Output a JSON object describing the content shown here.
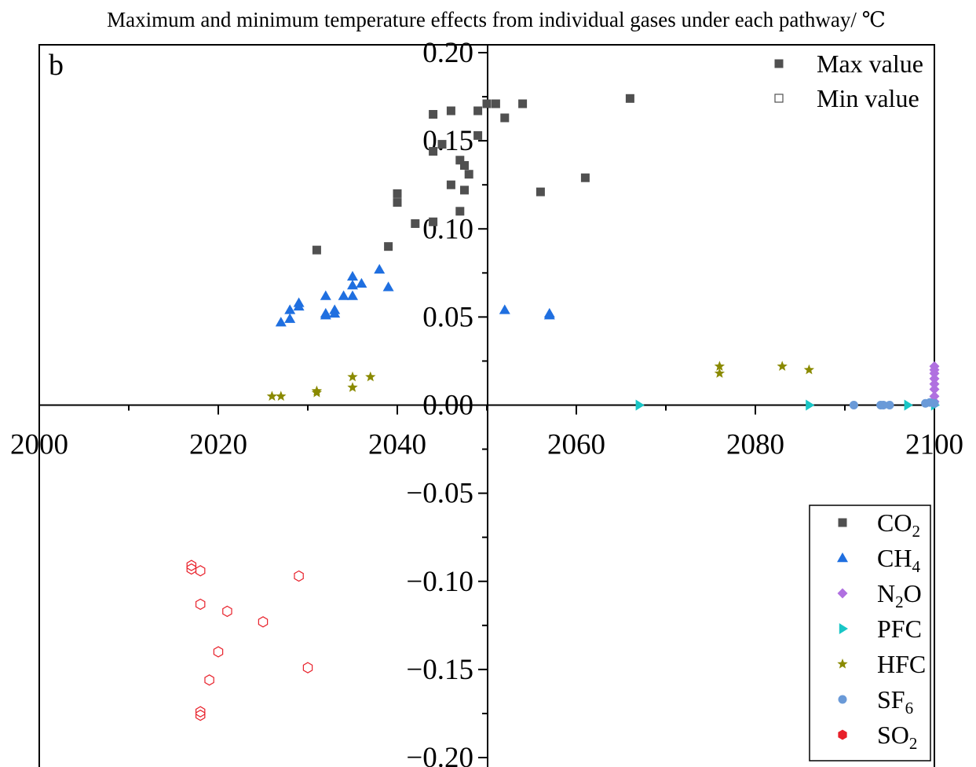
{
  "chart_data": {
    "type": "scatter",
    "title": "Maximum and minimum temperature effects from individual gases under each pathway/ ℃",
    "panel_label": "b",
    "xlim": [
      2000,
      2100
    ],
    "ylim": [
      -0.2,
      0.2
    ],
    "x_ticks": [
      "2000",
      "2020",
      "2040",
      "2060",
      "2080",
      "2100"
    ],
    "y_ticks": [
      "0.20",
      "0.15",
      "0.10",
      "0.05",
      "0.00",
      "−0.05",
      "−0.10",
      "−0.15",
      "−0.20"
    ],
    "legend_top": [
      {
        "label": "Max value",
        "marker": "square-filled"
      },
      {
        "label": "Min value",
        "marker": "square-open"
      }
    ],
    "legend_bottom": [
      {
        "base": "CO",
        "sub": "2",
        "tail": "",
        "color": "#505050",
        "marker": "square"
      },
      {
        "base": "CH",
        "sub": "4",
        "tail": "",
        "color": "#1f6fe0",
        "marker": "triangle"
      },
      {
        "base": "N",
        "sub": "2",
        "tail": "O",
        "color": "#b070e0",
        "marker": "diamond"
      },
      {
        "base": "PFC",
        "sub": "",
        "tail": "",
        "color": "#19c6c6",
        "marker": "triangle-right"
      },
      {
        "base": "HFC",
        "sub": "",
        "tail": "",
        "color": "#8a8a00",
        "marker": "star"
      },
      {
        "base": "SF",
        "sub": "6",
        "tail": "",
        "color": "#6a9ad8",
        "marker": "circle"
      },
      {
        "base": "SO",
        "sub": "2",
        "tail": "",
        "color": "#e8202a",
        "marker": "hexagon"
      }
    ],
    "series": [
      {
        "name": "CO2",
        "color": "#505050",
        "marker": "square",
        "x": [
          2031,
          2039,
          2040,
          2040,
          2042,
          2044,
          2044,
          2044,
          2045,
          2046,
          2046,
          2047,
          2047,
          2047.5,
          2047.5,
          2048,
          2049,
          2049,
          2050,
          2051,
          2052,
          2054,
          2056,
          2061,
          2066
        ],
        "y": [
          0.088,
          0.09,
          0.115,
          0.12,
          0.103,
          0.104,
          0.144,
          0.165,
          0.148,
          0.125,
          0.167,
          0.139,
          0.11,
          0.122,
          0.136,
          0.131,
          0.153,
          0.167,
          0.171,
          0.171,
          0.163,
          0.171,
          0.121,
          0.129,
          0.174
        ]
      },
      {
        "name": "CH4",
        "color": "#1f6fe0",
        "marker": "triangle",
        "x": [
          2027,
          2028,
          2028,
          2029,
          2029,
          2032,
          2032,
          2032,
          2033,
          2033,
          2034,
          2035,
          2035,
          2035,
          2036,
          2038,
          2039,
          2052,
          2057,
          2057
        ],
        "y": [
          0.047,
          0.049,
          0.054,
          0.056,
          0.058,
          0.051,
          0.052,
          0.062,
          0.052,
          0.054,
          0.062,
          0.062,
          0.068,
          0.073,
          0.069,
          0.077,
          0.067,
          0.054,
          0.051,
          0.052
        ]
      },
      {
        "name": "N2O",
        "color": "#b070e0",
        "marker": "diamond",
        "x": [
          2100,
          2100,
          2100,
          2100,
          2100,
          2100,
          2100,
          2100
        ],
        "y": [
          0.002,
          0.005,
          0.009,
          0.012,
          0.015,
          0.018,
          0.02,
          0.022
        ]
      },
      {
        "name": "PFC",
        "color": "#19c6c6",
        "marker": "triangle-right",
        "x": [
          2067,
          2086,
          2097,
          2100
        ],
        "y": [
          0.0,
          0.0,
          0.0,
          0.0
        ]
      },
      {
        "name": "HFC",
        "color": "#8a8a00",
        "marker": "star",
        "x": [
          2026,
          2027,
          2031,
          2031,
          2035,
          2035,
          2037,
          2076,
          2076,
          2083,
          2086
        ],
        "y": [
          0.005,
          0.005,
          0.008,
          0.007,
          0.01,
          0.016,
          0.016,
          0.018,
          0.022,
          0.022,
          0.02
        ]
      },
      {
        "name": "SF6",
        "color": "#6a9ad8",
        "marker": "circle",
        "x": [
          2091,
          2094,
          2094.3,
          2095,
          2099,
          2099.5,
          2100
        ],
        "y": [
          0.0,
          0.0,
          0.0,
          0.0,
          0.001,
          0.0015,
          0.001
        ]
      },
      {
        "name": "SO2",
        "color": "#e8202a",
        "marker": "hexagon",
        "x": [
          2017,
          2017,
          2018,
          2018,
          2018,
          2018,
          2019,
          2020,
          2021,
          2025,
          2029,
          2030
        ],
        "y": [
          -0.091,
          -0.093,
          -0.094,
          -0.113,
          -0.174,
          -0.176,
          -0.156,
          -0.14,
          -0.117,
          -0.123,
          -0.097,
          -0.149
        ]
      }
    ]
  }
}
